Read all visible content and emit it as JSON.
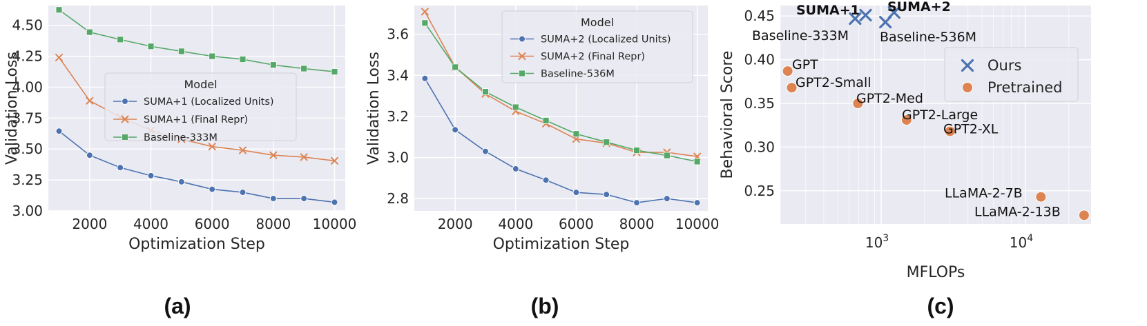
{
  "panel_labels": [
    "(a)",
    "(b)",
    "(c)"
  ],
  "colors": {
    "blue": "#4c72b0",
    "orange": "#dd8452",
    "green": "#55a868",
    "plot_bg": "#eaeaf2",
    "grid": "#ffffff"
  },
  "chart_data": [
    {
      "type": "line",
      "xlabel": "Optimization Step",
      "ylabel": "Validation Loss",
      "xlim": [
        650,
        10350
      ],
      "ylim": [
        3.0,
        4.66
      ],
      "xticks": [
        2000,
        4000,
        6000,
        8000,
        10000
      ],
      "xtick_labels": [
        "2000",
        "4000",
        "6000",
        "8000",
        "10000"
      ],
      "yticks": [
        3.0,
        3.25,
        3.5,
        3.75,
        4.0,
        4.25,
        4.5
      ],
      "ytick_labels": [
        "3.00",
        "3.25",
        "3.50",
        "3.75",
        "4.00",
        "4.25",
        "4.50"
      ],
      "grid": true,
      "legend": {
        "title": "Model",
        "placement": "center-right"
      },
      "x": [
        1000,
        2000,
        3000,
        4000,
        5000,
        6000,
        7000,
        8000,
        9000,
        10000
      ],
      "series": [
        {
          "name": "SUMA+1 (Localized Units)",
          "color": "#4c72b0",
          "marker": "circle",
          "values": [
            3.645,
            3.45,
            3.35,
            3.285,
            3.235,
            3.175,
            3.15,
            3.1,
            3.1,
            3.07
          ]
        },
        {
          "name": "SUMA+1 (Final Repr)",
          "color": "#dd8452",
          "marker": "x",
          "values": [
            4.24,
            3.89,
            3.76,
            3.65,
            3.58,
            3.52,
            3.49,
            3.45,
            3.435,
            3.405
          ]
        },
        {
          "name": "Baseline-333M",
          "color": "#55a868",
          "marker": "square",
          "values": [
            4.625,
            4.445,
            4.385,
            4.33,
            4.29,
            4.25,
            4.225,
            4.18,
            4.15,
            4.125
          ]
        }
      ]
    },
    {
      "type": "line",
      "xlabel": "Optimization Step",
      "ylabel": "Validation Loss",
      "xlim": [
        650,
        10350
      ],
      "ylim": [
        2.74,
        3.74
      ],
      "xticks": [
        2000,
        4000,
        6000,
        8000,
        10000
      ],
      "xtick_labels": [
        "2000",
        "4000",
        "6000",
        "8000",
        "10000"
      ],
      "yticks": [
        2.8,
        3.0,
        3.2,
        3.4,
        3.6
      ],
      "ytick_labels": [
        "2.8",
        "3.0",
        "3.2",
        "3.4",
        "3.6"
      ],
      "grid": true,
      "legend": {
        "title": "Model",
        "placement": "top-right"
      },
      "x": [
        1000,
        2000,
        3000,
        4000,
        5000,
        6000,
        7000,
        8000,
        9000,
        10000
      ],
      "series": [
        {
          "name": "SUMA+2 (Localized Units)",
          "color": "#4c72b0",
          "marker": "circle",
          "values": [
            3.385,
            3.135,
            3.03,
            2.945,
            2.89,
            2.83,
            2.82,
            2.78,
            2.8,
            2.78
          ]
        },
        {
          "name": "SUMA+2 (Final Repr)",
          "color": "#dd8452",
          "marker": "x",
          "values": [
            3.71,
            3.44,
            3.31,
            3.225,
            3.165,
            3.09,
            3.07,
            3.025,
            3.025,
            3.005
          ]
        },
        {
          "name": "Baseline-536M",
          "color": "#55a868",
          "marker": "square",
          "values": [
            3.655,
            3.44,
            3.32,
            3.245,
            3.18,
            3.115,
            3.075,
            3.035,
            3.01,
            2.98
          ]
        }
      ]
    },
    {
      "type": "scatter",
      "xlabel": "MFLOPs",
      "ylabel": "Behavioral Score",
      "xscale": "log",
      "xlim": [
        200,
        28500
      ],
      "ylim": [
        0.212,
        0.462
      ],
      "xticks": [
        1000,
        10000
      ],
      "xtick_labels": [
        "10",
        "10"
      ],
      "xtick_exponents": [
        "3",
        "4"
      ],
      "yticks": [
        0.25,
        0.3,
        0.35,
        0.4,
        0.45
      ],
      "ytick_labels": [
        "0.25",
        "0.30",
        "0.35",
        "0.40",
        "0.45"
      ],
      "grid": true,
      "legend": {
        "placement": "right"
      },
      "series": [
        {
          "name": "Ours",
          "color": "#4c72b0",
          "marker": "x",
          "points": [
            {
              "x": 660,
              "y": 0.447
            },
            {
              "x": 780,
              "y": 0.451
            },
            {
              "x": 1070,
              "y": 0.443
            },
            {
              "x": 1230,
              "y": 0.454
            }
          ]
        },
        {
          "name": "Pretrained",
          "color": "#dd8452",
          "marker": "circle",
          "points": [
            {
              "x": 225,
              "y": 0.387
            },
            {
              "x": 240,
              "y": 0.368
            },
            {
              "x": 690,
              "y": 0.35
            },
            {
              "x": 1500,
              "y": 0.331
            },
            {
              "x": 3000,
              "y": 0.318
            },
            {
              "x": 12800,
              "y": 0.243
            },
            {
              "x": 25500,
              "y": 0.222
            }
          ]
        }
      ],
      "annotations": [
        {
          "text": "SUMA+1",
          "bold": true
        },
        {
          "text": "SUMA+2",
          "bold": true
        },
        {
          "text": "Baseline-333M",
          "bold": false
        },
        {
          "text": "Baseline-536M",
          "bold": false
        },
        {
          "text": "GPT",
          "bold": false
        },
        {
          "text": "GPT2-Small",
          "bold": false
        },
        {
          "text": "GPT2-Med",
          "bold": false
        },
        {
          "text": "GPT2-Large",
          "bold": false
        },
        {
          "text": "GPT2-XL",
          "bold": false
        },
        {
          "text": "LLaMA-2-7B",
          "bold": false
        },
        {
          "text": "LLaMA-2-13B",
          "bold": false
        }
      ]
    }
  ]
}
